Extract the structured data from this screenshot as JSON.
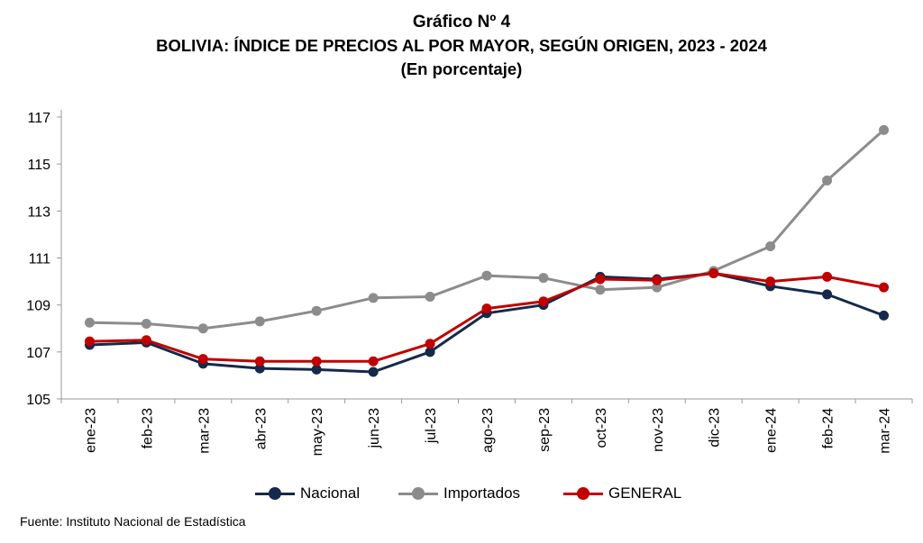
{
  "title": {
    "line1": "Gráfico Nº 4",
    "line2": "BOLIVIA: ÍNDICE DE PRECIOS AL POR MAYOR, SEGÚN ORIGEN, 2023 - 2024",
    "line3": "(En porcentaje)"
  },
  "source": "Fuente: Instituto Nacional de Estadística",
  "chart_data": {
    "type": "line",
    "title": "BOLIVIA: ÍNDICE DE PRECIOS AL POR MAYOR, SEGÚN ORIGEN, 2023 - 2024",
    "subtitle": "(En porcentaje)",
    "xlabel": "",
    "ylabel": "",
    "categories": [
      "ene-23",
      "feb-23",
      "mar-23",
      "abr-23",
      "may-23",
      "jun-23",
      "jul-23",
      "ago-23",
      "sep-23",
      "oct-23",
      "nov-23",
      "dic-23",
      "ene-24",
      "feb-24",
      "mar-24"
    ],
    "ylim": [
      105,
      117
    ],
    "yticks": [
      105,
      107,
      109,
      111,
      113,
      115,
      117
    ],
    "grid": false,
    "legend_position": "bottom",
    "series": [
      {
        "name": "Nacional",
        "color": "#15294a",
        "values": [
          107.3,
          107.4,
          106.5,
          106.3,
          106.25,
          106.15,
          107.0,
          108.65,
          109.0,
          110.2,
          110.1,
          110.35,
          109.8,
          109.45,
          108.55
        ]
      },
      {
        "name": "Importados",
        "color": "#8c8c8c",
        "values": [
          108.25,
          108.2,
          108.0,
          108.3,
          108.75,
          109.3,
          109.35,
          110.25,
          110.15,
          109.65,
          109.75,
          110.45,
          111.5,
          114.3,
          116.45
        ]
      },
      {
        "name": "GENERAL",
        "color": "#c00000",
        "values": [
          107.45,
          107.5,
          106.7,
          106.6,
          106.6,
          106.6,
          107.35,
          108.85,
          109.15,
          110.1,
          110.05,
          110.35,
          110.0,
          110.2,
          109.75
        ]
      }
    ]
  }
}
